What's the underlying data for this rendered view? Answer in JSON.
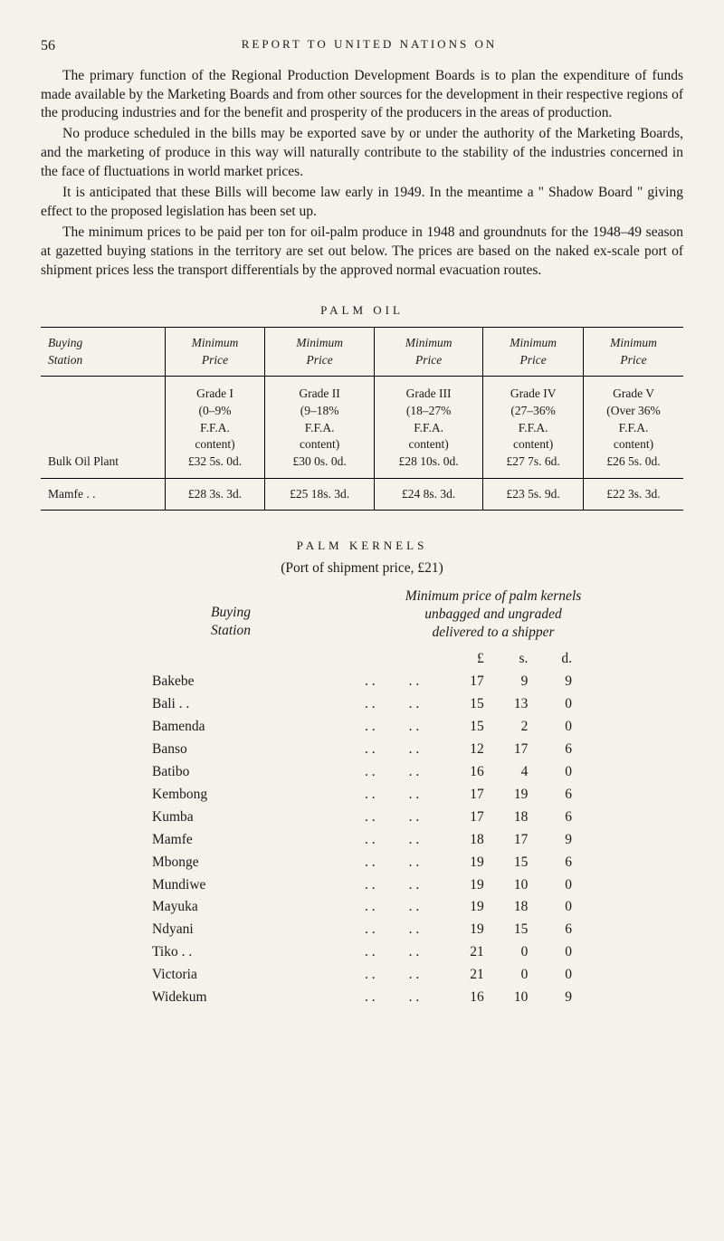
{
  "page_number": "56",
  "heading": "REPORT TO UNITED NATIONS ON",
  "paragraphs": [
    "The primary function of the Regional Production Development Boards is to plan the expenditure of funds made available by the Marketing Boards and from other sources for the development in their respective regions of the producing industries and for the benefit and prosperity of the producers in the areas of production.",
    "No produce scheduled in the bills may be exported save by or under the authority of the Marketing Boards, and the marketing of produce in this way will naturally contribute to the stability of the industries concerned in the face of fluctuations in world market prices.",
    "It is anticipated that these Bills will become law early in 1949. In the meantime a \" Shadow Board \" giving effect to the proposed legislation has been set up.",
    "The minimum prices to be paid per ton for oil-palm produce in 1948 and groundnuts for the 1948–49 season at gazetted buying stations in the territory are set out below. The prices are based on the naked ex-scale port of shipment prices less the transport differentials by the approved normal evacuation routes."
  ],
  "palm_oil": {
    "title": "PALM OIL",
    "header_labels": {
      "station": "Buying\nStation",
      "price": "Minimum\nPrice"
    },
    "grades": [
      {
        "name": "Grade I",
        "range": "(0–9%",
        "ffa": "F.F.A.",
        "content": "content)",
        "price": "£32 5s. 0d."
      },
      {
        "name": "Grade II",
        "range": "(9–18%",
        "ffa": "F.F.A.",
        "content": "content)",
        "price": "£30 0s. 0d."
      },
      {
        "name": "Grade III",
        "range": "(18–27%",
        "ffa": "F.F.A.",
        "content": "content)",
        "price": "£28 10s. 0d."
      },
      {
        "name": "Grade IV",
        "range": "(27–36%",
        "ffa": "F.F.A.",
        "content": "content)",
        "price": "£27 7s. 6d."
      },
      {
        "name": "Grade V",
        "range": "(Over 36%",
        "ffa": "F.F.A.",
        "content": "content)",
        "price": "£26 5s. 0d."
      }
    ],
    "rows": [
      {
        "station": "Bulk Oil Plant",
        "prices": [
          "£32 5s. 0d.",
          "£30 0s. 0d.",
          "£28 10s. 0d.",
          "£27 7s. 6d.",
          "£26 5s. 0d."
        ]
      },
      {
        "station": "Mamfe     . .",
        "prices": [
          "£28 3s. 3d.",
          "£25 18s. 3d.",
          "£24 8s. 3d.",
          "£23 5s. 9d.",
          "£22 3s. 3d."
        ]
      }
    ]
  },
  "palm_kernels": {
    "title": "PALM KERNELS",
    "subtitle": "(Port of shipment price, £21)",
    "left_header": "Buying\nStation",
    "right_header": "Minimum price of palm kernels\nunbagged and ungraded\ndelivered to a shipper",
    "units": {
      "l": "£",
      "s": "s.",
      "d": "d."
    },
    "rows": [
      {
        "station": "Bakebe",
        "l": "17",
        "s": "9",
        "d": "9"
      },
      {
        "station": "Bali  . .",
        "l": "15",
        "s": "13",
        "d": "0"
      },
      {
        "station": "Bamenda",
        "l": "15",
        "s": "2",
        "d": "0"
      },
      {
        "station": "Banso",
        "l": "12",
        "s": "17",
        "d": "6"
      },
      {
        "station": "Batibo",
        "l": "16",
        "s": "4",
        "d": "0"
      },
      {
        "station": "Kembong",
        "l": "17",
        "s": "19",
        "d": "6"
      },
      {
        "station": "Kumba",
        "l": "17",
        "s": "18",
        "d": "6"
      },
      {
        "station": "Mamfe",
        "l": "18",
        "s": "17",
        "d": "9"
      },
      {
        "station": "Mbonge",
        "l": "19",
        "s": "15",
        "d": "6"
      },
      {
        "station": "Mundiwe",
        "l": "19",
        "s": "10",
        "d": "0"
      },
      {
        "station": "Mayuka",
        "l": "19",
        "s": "18",
        "d": "0"
      },
      {
        "station": "Ndyani",
        "l": "19",
        "s": "15",
        "d": "6"
      },
      {
        "station": "Tiko  . .",
        "l": "21",
        "s": "0",
        "d": "0"
      },
      {
        "station": "Victoria",
        "l": "21",
        "s": "0",
        "d": "0"
      },
      {
        "station": "Widekum",
        "l": "16",
        "s": "10",
        "d": "9"
      }
    ]
  }
}
